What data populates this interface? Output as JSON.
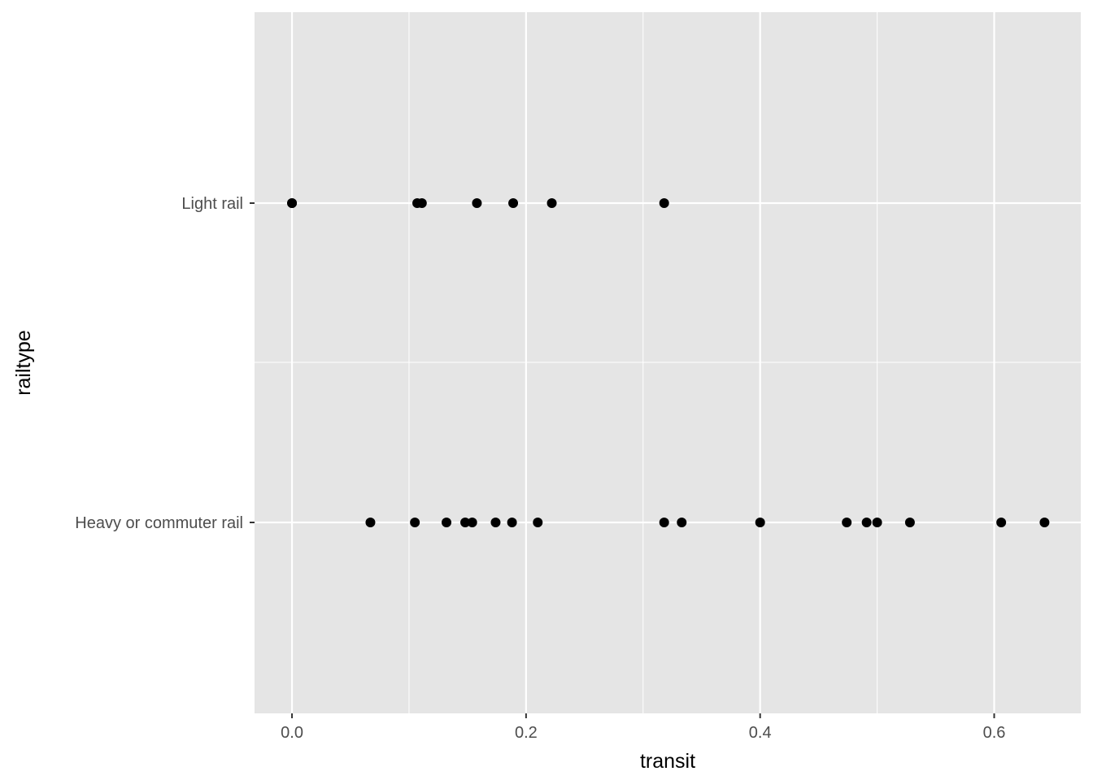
{
  "chart_data": {
    "type": "scatter",
    "title": "",
    "xlabel": "transit",
    "ylabel": "railtype",
    "xlim": [
      -0.032,
      0.674
    ],
    "x_ticks": [
      0.0,
      0.2,
      0.4,
      0.6
    ],
    "x_tick_labels": [
      "0.0",
      "0.2",
      "0.4",
      "0.6"
    ],
    "categories": [
      "Heavy or commuter rail",
      "Light rail"
    ],
    "grid": true,
    "theme": {
      "panel_background": "#e5e5e5",
      "grid_color": "#ffffff",
      "point_color": "#000000",
      "tick_label_color": "#4d4d4d"
    },
    "points": [
      {
        "category": "Light rail",
        "x": 0.0
      },
      {
        "category": "Light rail",
        "x": 0.0
      },
      {
        "category": "Light rail",
        "x": 0.107
      },
      {
        "category": "Light rail",
        "x": 0.111
      },
      {
        "category": "Light rail",
        "x": 0.158
      },
      {
        "category": "Light rail",
        "x": 0.189
      },
      {
        "category": "Light rail",
        "x": 0.222
      },
      {
        "category": "Light rail",
        "x": 0.318
      },
      {
        "category": "Heavy or commuter rail",
        "x": 0.067
      },
      {
        "category": "Heavy or commuter rail",
        "x": 0.105
      },
      {
        "category": "Heavy or commuter rail",
        "x": 0.132
      },
      {
        "category": "Heavy or commuter rail",
        "x": 0.148
      },
      {
        "category": "Heavy or commuter rail",
        "x": 0.154
      },
      {
        "category": "Heavy or commuter rail",
        "x": 0.174
      },
      {
        "category": "Heavy or commuter rail",
        "x": 0.188
      },
      {
        "category": "Heavy or commuter rail",
        "x": 0.21
      },
      {
        "category": "Heavy or commuter rail",
        "x": 0.318
      },
      {
        "category": "Heavy or commuter rail",
        "x": 0.333
      },
      {
        "category": "Heavy or commuter rail",
        "x": 0.4
      },
      {
        "category": "Heavy or commuter rail",
        "x": 0.474
      },
      {
        "category": "Heavy or commuter rail",
        "x": 0.491
      },
      {
        "category": "Heavy or commuter rail",
        "x": 0.5
      },
      {
        "category": "Heavy or commuter rail",
        "x": 0.528
      },
      {
        "category": "Heavy or commuter rail",
        "x": 0.606
      },
      {
        "category": "Heavy or commuter rail",
        "x": 0.643
      }
    ]
  }
}
